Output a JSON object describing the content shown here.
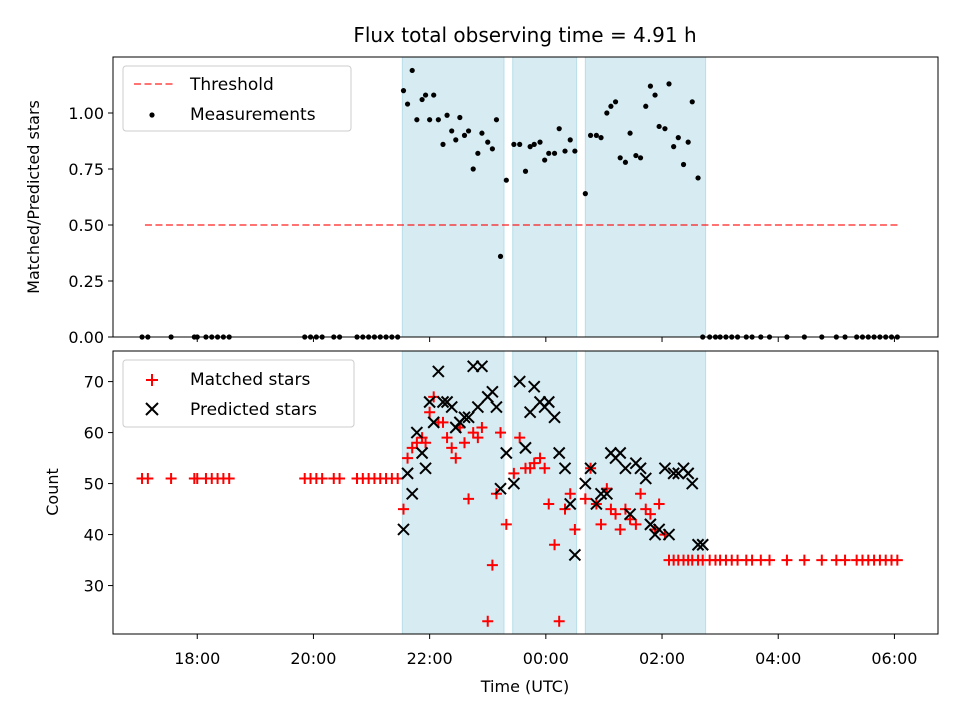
{
  "figure": {
    "title": "Flux total observing time = 4.91 h",
    "xlabel": "Time (UTC)"
  },
  "colors": {
    "shade": "#add8e6",
    "threshold": "#ff0000",
    "measurement": "#000000",
    "matched": "#ff0000",
    "predicted": "#000000"
  },
  "chart_data": [
    {
      "type": "scatter",
      "ylabel": "Matched/Predicted stars",
      "xlim": [
        16.55,
        30.75
      ],
      "ylim": [
        0,
        1.25
      ],
      "x_tick_labels": [
        "18:00",
        "20:00",
        "22:00",
        "00:00",
        "02:00",
        "04:00",
        "06:00"
      ],
      "x_ticks": [
        18,
        20,
        22,
        24,
        26,
        28,
        30
      ],
      "y_ticks": [
        0.0,
        0.25,
        0.5,
        0.75,
        1.0
      ],
      "y_tick_labels": [
        "0.00",
        "0.25",
        "0.50",
        "0.75",
        "1.00"
      ],
      "shaded_intervals": [
        [
          21.53,
          23.28
        ],
        [
          23.43,
          24.53
        ],
        [
          24.68,
          26.75
        ]
      ],
      "legend": {
        "location": "upper left",
        "entries": [
          "Threshold",
          "Measurements"
        ]
      },
      "series": [
        {
          "name": "Threshold",
          "style": "dashed-line",
          "x": [
            17.1,
            30.1
          ],
          "y": [
            0.5,
            0.5
          ]
        },
        {
          "name": "Measurements",
          "style": "dot",
          "x": [
            17.05,
            17.15,
            17.55,
            17.95,
            18.0,
            18.15,
            18.25,
            18.35,
            18.45,
            18.55,
            19.85,
            19.95,
            20.05,
            20.15,
            20.35,
            20.45,
            20.75,
            20.85,
            20.95,
            21.05,
            21.15,
            21.25,
            21.35,
            21.45,
            21.55,
            21.62,
            21.7,
            21.78,
            21.87,
            21.93,
            22.0,
            22.07,
            22.15,
            22.23,
            22.3,
            22.38,
            22.45,
            22.52,
            22.6,
            22.67,
            22.75,
            22.83,
            22.9,
            23.0,
            23.08,
            23.15,
            23.22,
            23.32,
            23.45,
            23.55,
            23.65,
            23.73,
            23.8,
            23.9,
            23.98,
            24.05,
            24.15,
            24.23,
            24.33,
            24.42,
            24.5,
            24.68,
            24.77,
            24.87,
            24.95,
            25.05,
            25.12,
            25.2,
            25.28,
            25.37,
            25.45,
            25.55,
            25.63,
            25.72,
            25.8,
            25.88,
            25.95,
            26.05,
            26.12,
            26.2,
            26.28,
            26.37,
            26.45,
            26.52,
            26.62,
            26.7,
            26.82,
            26.92,
            27.0,
            27.1,
            27.2,
            27.3,
            27.45,
            27.55,
            27.7,
            27.85,
            28.15,
            28.45,
            28.75,
            29.0,
            29.15,
            29.35,
            29.45,
            29.55,
            29.65,
            29.75,
            29.85,
            29.95,
            30.05
          ],
          "y": [
            0,
            0,
            0,
            0,
            0,
            0,
            0,
            0,
            0,
            0,
            0,
            0,
            0,
            0,
            0,
            0,
            0,
            0,
            0,
            0,
            0,
            0,
            0,
            0,
            1.1,
            1.04,
            1.19,
            0.97,
            1.06,
            1.08,
            0.97,
            1.08,
            0.97,
            0.86,
            0.99,
            0.92,
            0.88,
            0.98,
            0.9,
            0.92,
            0.75,
            0.82,
            0.91,
            0.87,
            0.84,
            0.97,
            0.36,
            0.7,
            0.86,
            0.86,
            0.74,
            0.85,
            0.86,
            0.87,
            0.79,
            0.82,
            0.82,
            0.93,
            0.83,
            0.88,
            0.83,
            0.64,
            0.9,
            0.9,
            0.89,
            1.0,
            1.03,
            1.05,
            0.8,
            0.78,
            0.91,
            0.81,
            0.8,
            1.03,
            1.12,
            1.08,
            0.94,
            0.93,
            1.13,
            0.85,
            0.89,
            0.77,
            0.87,
            1.05,
            0.71,
            0,
            0,
            0,
            0,
            0,
            0,
            0,
            0,
            0,
            0,
            0,
            0,
            0,
            0,
            0,
            0,
            0,
            0,
            0,
            0,
            0,
            0,
            0,
            0
          ]
        }
      ]
    },
    {
      "type": "scatter",
      "ylabel": "Count",
      "xlim": [
        16.55,
        30.75
      ],
      "ylim": [
        20.5,
        76
      ],
      "x_ticks": [
        18,
        20,
        22,
        24,
        26,
        28,
        30
      ],
      "y_ticks": [
        30,
        40,
        50,
        60,
        70
      ],
      "y_tick_labels": [
        "30",
        "40",
        "50",
        "60",
        "70"
      ],
      "legend": {
        "location": "upper left",
        "entries": [
          "Matched stars",
          "Predicted stars"
        ]
      },
      "series": [
        {
          "name": "Matched stars",
          "marker": "+",
          "x": [
            17.05,
            17.15,
            17.55,
            17.95,
            18.0,
            18.15,
            18.25,
            18.35,
            18.45,
            18.55,
            19.85,
            19.95,
            20.05,
            20.15,
            20.35,
            20.45,
            20.75,
            20.85,
            20.95,
            21.05,
            21.15,
            21.25,
            21.35,
            21.45,
            21.55,
            21.62,
            21.7,
            21.78,
            21.87,
            21.93,
            22.0,
            22.07,
            22.15,
            22.23,
            22.3,
            22.38,
            22.45,
            22.52,
            22.6,
            22.67,
            22.75,
            22.83,
            22.9,
            23.0,
            23.08,
            23.15,
            23.22,
            23.32,
            23.45,
            23.55,
            23.65,
            23.73,
            23.8,
            23.9,
            23.98,
            24.05,
            24.15,
            24.23,
            24.33,
            24.42,
            24.5,
            24.68,
            24.77,
            24.87,
            24.95,
            25.05,
            25.12,
            25.2,
            25.28,
            25.37,
            25.45,
            25.55,
            25.63,
            25.72,
            25.8,
            25.88,
            25.95,
            26.05,
            26.12,
            26.2,
            26.28,
            26.37,
            26.45,
            26.52,
            26.62,
            26.7,
            26.82,
            26.92,
            27.0,
            27.1,
            27.2,
            27.3,
            27.45,
            27.55,
            27.7,
            27.85,
            28.15,
            28.45,
            28.75,
            29.0,
            29.15,
            29.35,
            29.45,
            29.55,
            29.65,
            29.75,
            29.85,
            29.95,
            30.05
          ],
          "y": [
            51,
            51,
            51,
            51,
            51,
            51,
            51,
            51,
            51,
            51,
            51,
            51,
            51,
            51,
            51,
            51,
            51,
            51,
            51,
            51,
            51,
            51,
            51,
            51,
            45,
            55,
            57,
            58,
            59,
            58,
            64,
            67,
            62,
            62,
            59,
            57,
            55,
            61,
            58,
            47,
            60,
            59,
            61,
            23,
            34,
            48,
            60,
            42,
            52,
            59,
            53,
            53,
            54,
            55,
            53,
            46,
            38,
            23,
            45,
            48,
            41,
            47,
            53,
            46,
            42,
            49,
            45,
            44,
            41,
            45,
            43,
            42,
            48,
            45,
            44,
            41,
            46,
            40,
            35,
            35,
            35,
            35,
            35,
            35,
            35,
            35,
            35,
            35,
            35,
            35,
            35,
            35,
            35,
            35,
            35,
            35,
            35,
            35,
            35,
            35,
            35,
            35,
            35,
            35,
            35,
            35,
            35,
            35,
            35
          ]
        },
        {
          "name": "Predicted stars",
          "marker": "x",
          "x": [
            21.55,
            21.62,
            21.7,
            21.78,
            21.87,
            21.93,
            22.0,
            22.07,
            22.15,
            22.23,
            22.3,
            22.38,
            22.45,
            22.52,
            22.6,
            22.67,
            22.75,
            22.83,
            22.9,
            23.0,
            23.08,
            23.15,
            23.22,
            23.32,
            23.45,
            23.55,
            23.65,
            23.73,
            23.8,
            23.9,
            23.98,
            24.05,
            24.15,
            24.23,
            24.33,
            24.42,
            24.5,
            24.68,
            24.77,
            24.87,
            24.95,
            25.05,
            25.12,
            25.2,
            25.28,
            25.37,
            25.45,
            25.55,
            25.63,
            25.72,
            25.8,
            25.88,
            25.95,
            26.05,
            26.12,
            26.2,
            26.28,
            26.37,
            26.45,
            26.52,
            26.62,
            26.7
          ],
          "y": [
            41,
            52,
            48,
            60,
            56,
            53,
            66,
            62,
            72,
            66,
            66,
            65,
            61,
            62,
            63,
            63,
            73,
            65,
            73,
            67,
            68,
            65,
            49,
            56,
            50,
            70,
            57,
            64,
            69,
            66,
            65,
            66,
            63,
            56,
            53,
            46,
            36,
            50,
            53,
            46,
            48,
            48,
            56,
            55,
            56,
            53,
            44,
            54,
            53,
            51,
            42,
            40,
            41,
            53,
            40,
            52,
            52,
            53,
            52,
            50,
            38,
            38
          ]
        }
      ]
    }
  ]
}
